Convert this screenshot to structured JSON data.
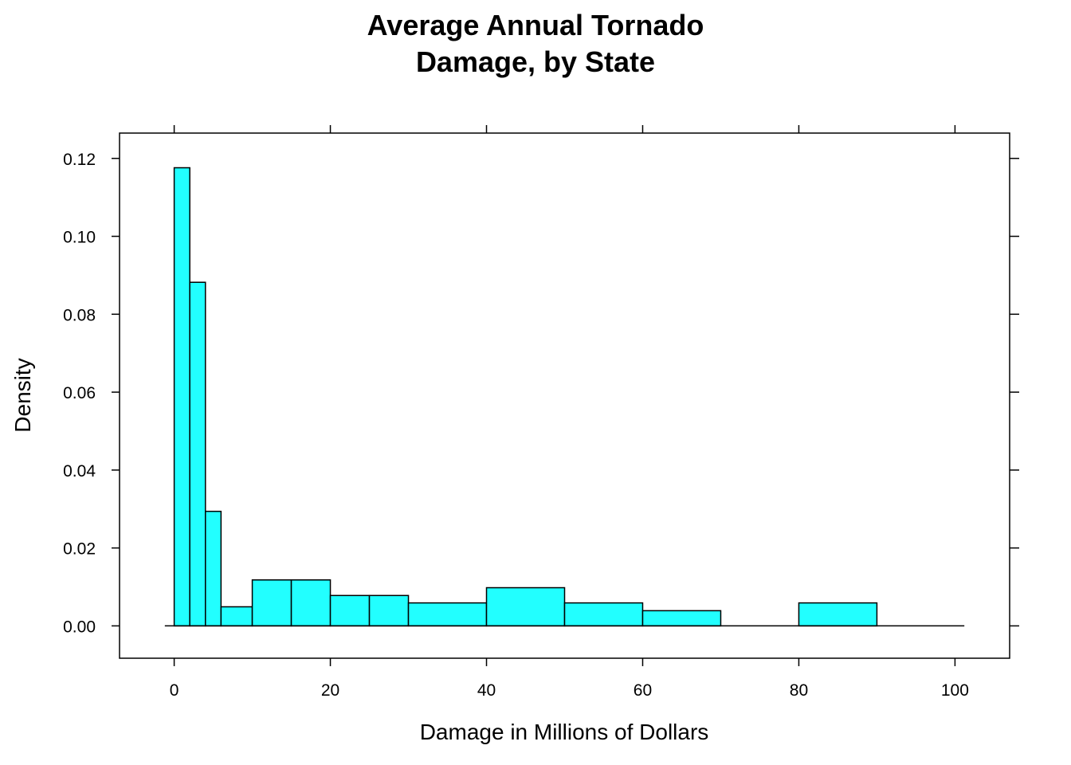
{
  "chart_data": {
    "type": "bar",
    "title_lines": [
      "Average Annual Tornado",
      "Damage, by State"
    ],
    "xlabel": "Damage in Millions of Dollars",
    "ylabel": "Density",
    "xlim": [
      -7,
      107
    ],
    "ylim": [
      -0.0083,
      0.1265
    ],
    "x_ticks": [
      0,
      20,
      40,
      60,
      80,
      100
    ],
    "x_tick_labels": [
      "0",
      "20",
      "40",
      "60",
      "80",
      "100"
    ],
    "y_ticks": [
      0,
      0.02,
      0.04,
      0.06,
      0.08,
      0.1,
      0.12
    ],
    "y_tick_labels": [
      "0.00",
      "0.02",
      "0.04",
      "0.06",
      "0.08",
      "0.10",
      "0.12"
    ],
    "baseline_range": [
      -1.2,
      101.2
    ],
    "bins": [
      {
        "x0": 0,
        "x1": 2,
        "density": 0.1176
      },
      {
        "x0": 2,
        "x1": 4,
        "density": 0.0882
      },
      {
        "x0": 4,
        "x1": 6,
        "density": 0.0294
      },
      {
        "x0": 6,
        "x1": 10,
        "density": 0.0049
      },
      {
        "x0": 10,
        "x1": 15,
        "density": 0.0118
      },
      {
        "x0": 15,
        "x1": 20,
        "density": 0.0118
      },
      {
        "x0": 20,
        "x1": 25,
        "density": 0.0078
      },
      {
        "x0": 25,
        "x1": 30,
        "density": 0.0078
      },
      {
        "x0": 30,
        "x1": 40,
        "density": 0.0059
      },
      {
        "x0": 40,
        "x1": 50,
        "density": 0.0098
      },
      {
        "x0": 50,
        "x1": 60,
        "density": 0.0059
      },
      {
        "x0": 60,
        "x1": 70,
        "density": 0.0039
      },
      {
        "x0": 70,
        "x1": 80,
        "density": 0.0
      },
      {
        "x0": 80,
        "x1": 90,
        "density": 0.0059
      },
      {
        "x0": 90,
        "x1": 100,
        "density": 0.0
      }
    ],
    "bar_fill": "#22FFFF",
    "bar_stroke": "#000000",
    "grid": false
  }
}
